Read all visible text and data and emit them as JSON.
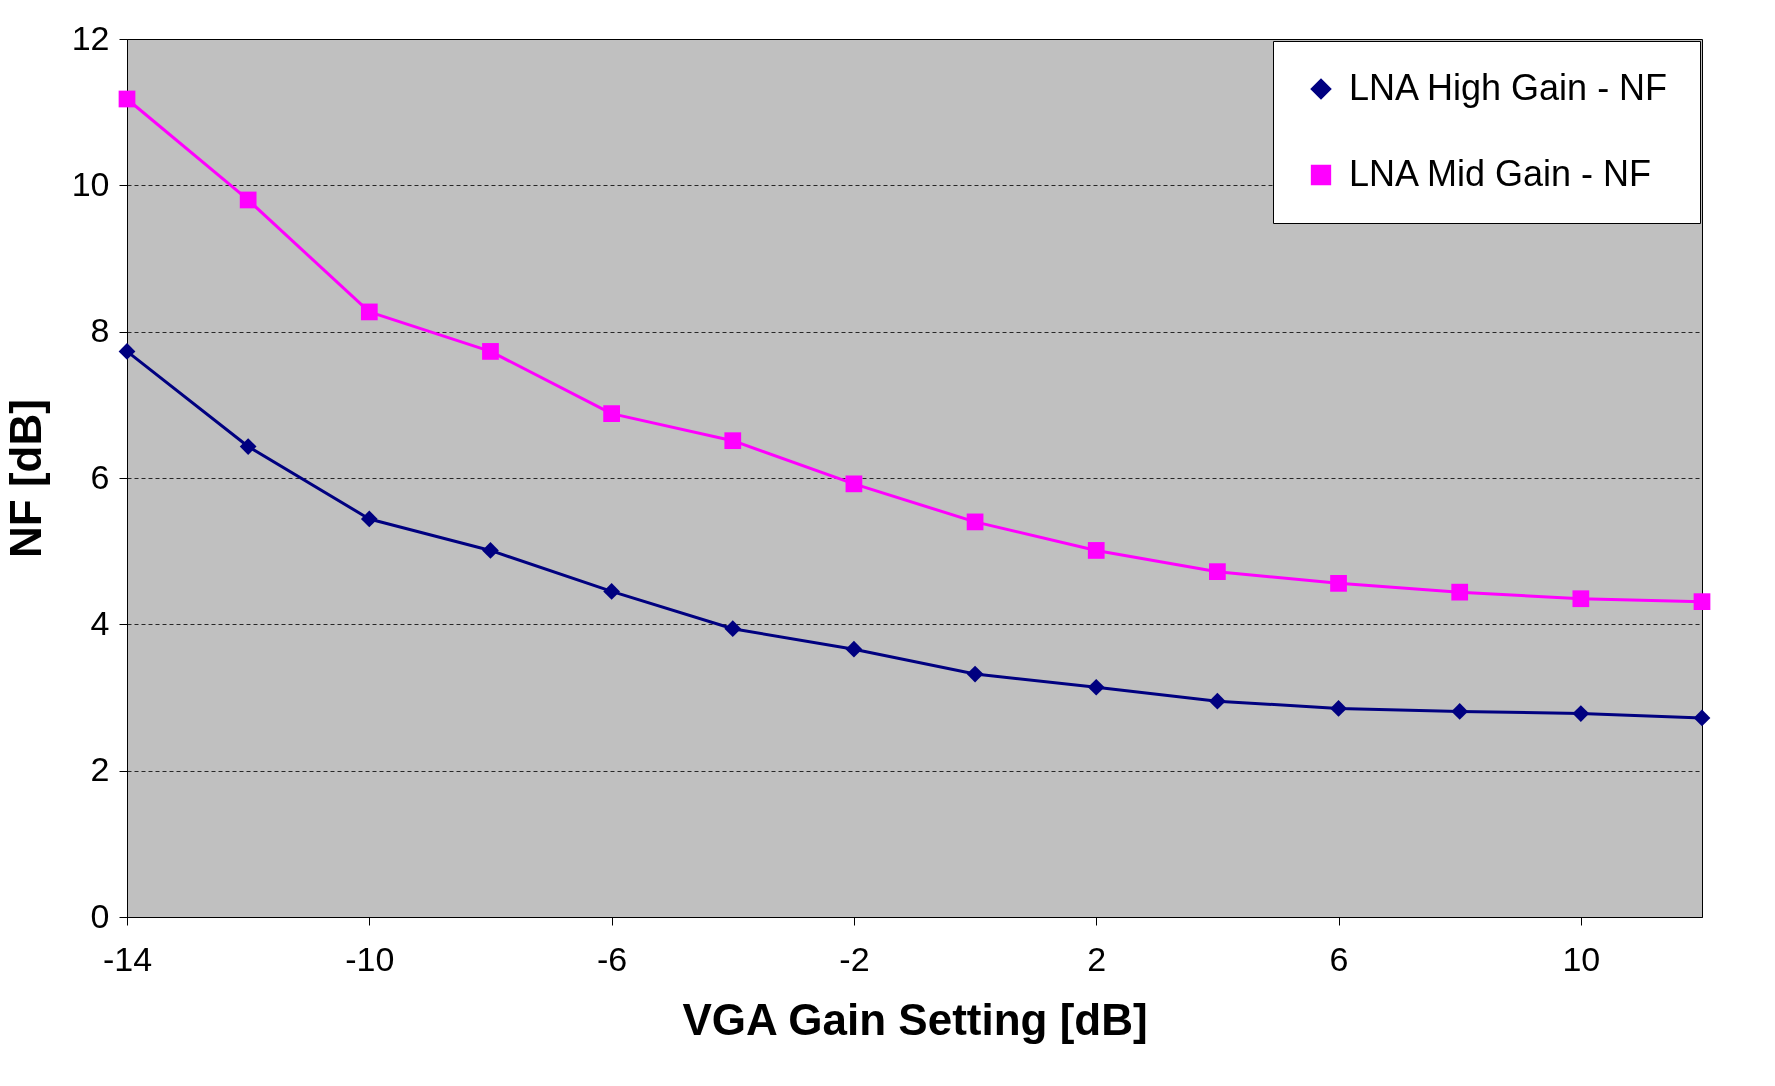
{
  "chart_data": {
    "type": "line",
    "xlabel": "VGA Gain Setting [dB]",
    "ylabel": "NF [dB]",
    "x": [
      -14,
      -12,
      -10,
      -8,
      -6,
      -4,
      -2,
      0,
      2,
      4,
      6,
      8,
      10,
      12
    ],
    "xlim": [
      -14,
      12
    ],
    "xticks": [
      -14,
      -10,
      -6,
      -2,
      2,
      6,
      10
    ],
    "ylim": [
      0,
      12
    ],
    "yticks": [
      0,
      2,
      4,
      6,
      8,
      10,
      12
    ],
    "grid": "y",
    "legend": "top right",
    "series": [
      {
        "name": "LNA High Gain - NF",
        "color": "#000080",
        "marker": "diamond",
        "values": [
          7.73,
          6.43,
          5.44,
          5.01,
          4.45,
          3.94,
          3.66,
          3.32,
          3.14,
          2.95,
          2.85,
          2.81,
          2.78,
          2.72
        ]
      },
      {
        "name": "LNA Mid Gain - NF",
        "color": "#ff00ff",
        "marker": "square",
        "values": [
          11.18,
          9.8,
          8.27,
          7.73,
          6.88,
          6.51,
          5.92,
          5.4,
          5.01,
          4.72,
          4.56,
          4.44,
          4.35,
          4.31
        ]
      }
    ]
  }
}
